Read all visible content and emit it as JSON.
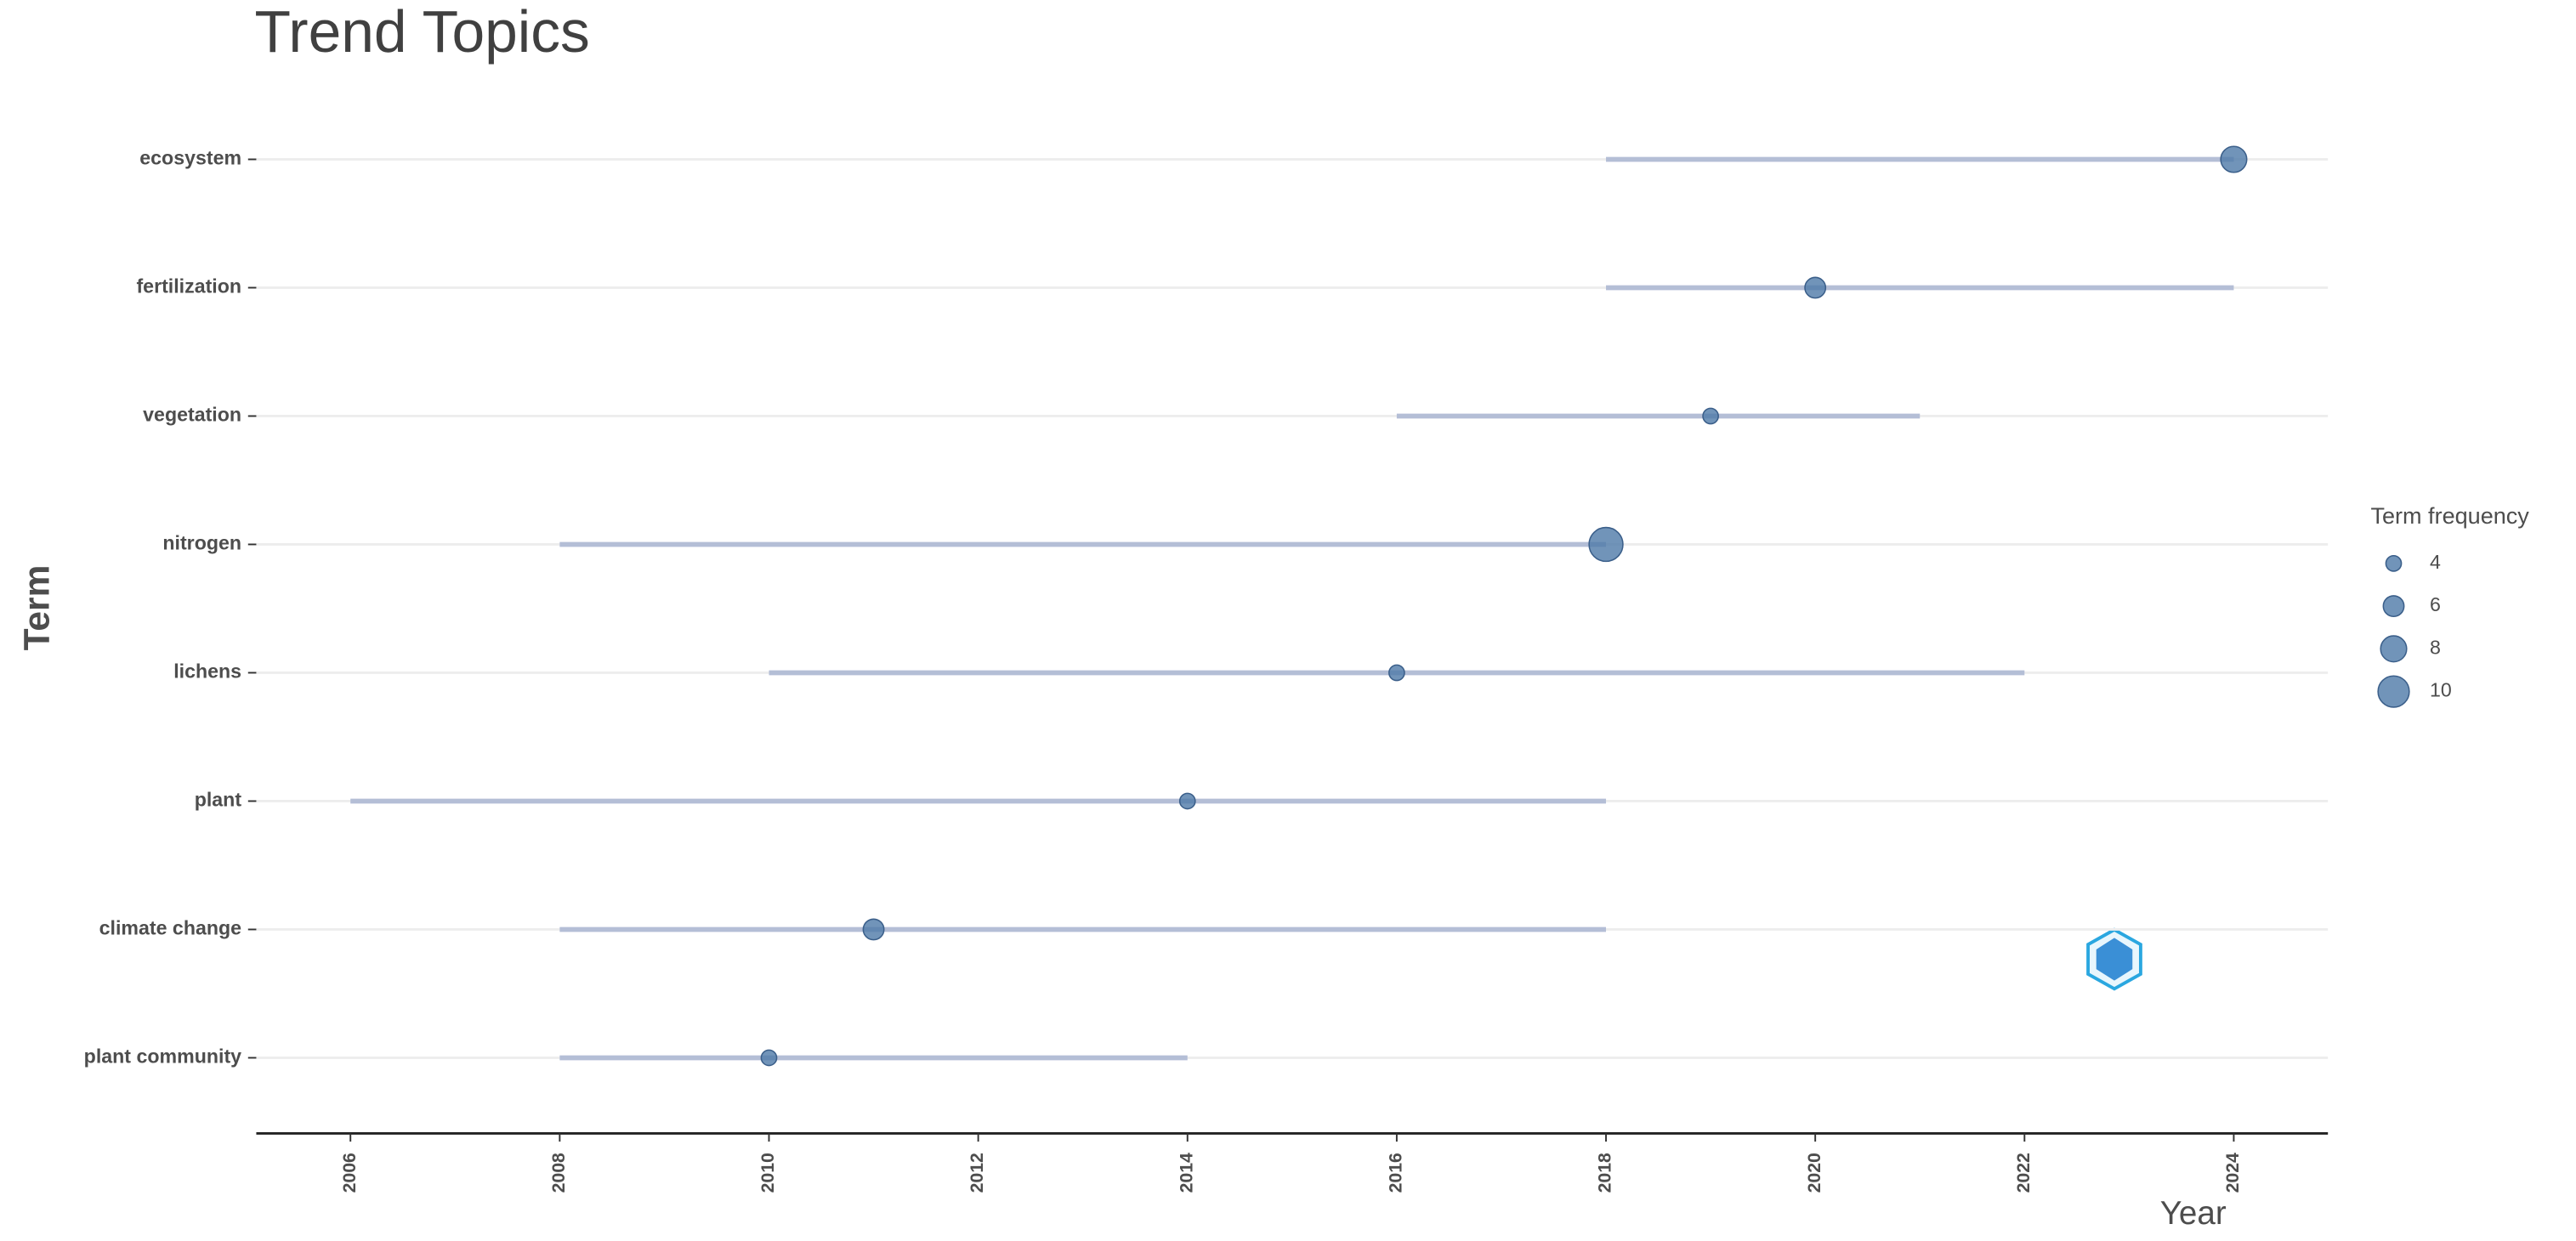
{
  "chart_data": {
    "type": "dumbbell",
    "title": "Trend Topics",
    "xlabel": "Year",
    "ylabel": "Term",
    "categories": [
      "ecosystem",
      "fertilization",
      "vegetation",
      "nitrogen",
      "lichens",
      "plant",
      "climate change",
      "plant community"
    ],
    "start": [
      2018,
      2018,
      2016,
      2008,
      2010,
      2006,
      2008,
      2008
    ],
    "end": [
      2024,
      2024,
      2021,
      2018,
      2022,
      2018,
      2018,
      2014
    ],
    "values": [
      2024,
      2020,
      2019,
      2018,
      2016,
      2014,
      2011,
      2010
    ],
    "frequency": [
      8,
      6,
      4,
      11,
      4,
      4,
      6,
      4
    ],
    "color": "#4e79a7",
    "line_color": "#b4bed6",
    "xlim": [
      2005.1,
      2024.9
    ],
    "xticks": [
      2006,
      2008,
      2010,
      2012,
      2014,
      2016,
      2018,
      2020,
      2022,
      2024
    ],
    "grid": true,
    "legend": {
      "title": "Term frequency",
      "sizes": [
        4,
        6,
        8,
        10
      ]
    }
  }
}
